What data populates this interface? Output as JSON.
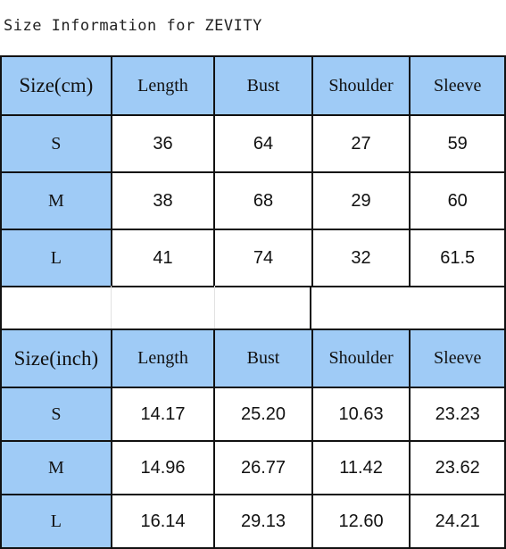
{
  "title": "Size Information for ZEVITY",
  "cm_table": {
    "headers": [
      "Size(cm)",
      "Length",
      "Bust",
      "Shoulder",
      "Sleeve"
    ],
    "rows": [
      {
        "size": "S",
        "length": "36",
        "bust": "64",
        "shoulder": "27",
        "sleeve": "59"
      },
      {
        "size": "M",
        "length": "38",
        "bust": "68",
        "shoulder": "29",
        "sleeve": "60"
      },
      {
        "size": "L",
        "length": "41",
        "bust": "74",
        "shoulder": "32",
        "sleeve": "61.5"
      }
    ]
  },
  "inch_table": {
    "headers": [
      "Size(inch)",
      "Length",
      "Bust",
      "Shoulder",
      "Sleeve"
    ],
    "rows": [
      {
        "size": "S",
        "length": "14.17",
        "bust": "25.20",
        "shoulder": "10.63",
        "sleeve": "23.23"
      },
      {
        "size": "M",
        "length": "14.96",
        "bust": "26.77",
        "shoulder": "11.42",
        "sleeve": "23.62"
      },
      {
        "size": "L",
        "length": "16.14",
        "bust": "29.13",
        "shoulder": "12.60",
        "sleeve": "24.21"
      }
    ]
  },
  "colors": {
    "header_bg": "#9fcbf6",
    "cell_bg": "#ffffff",
    "border": "#111111"
  }
}
